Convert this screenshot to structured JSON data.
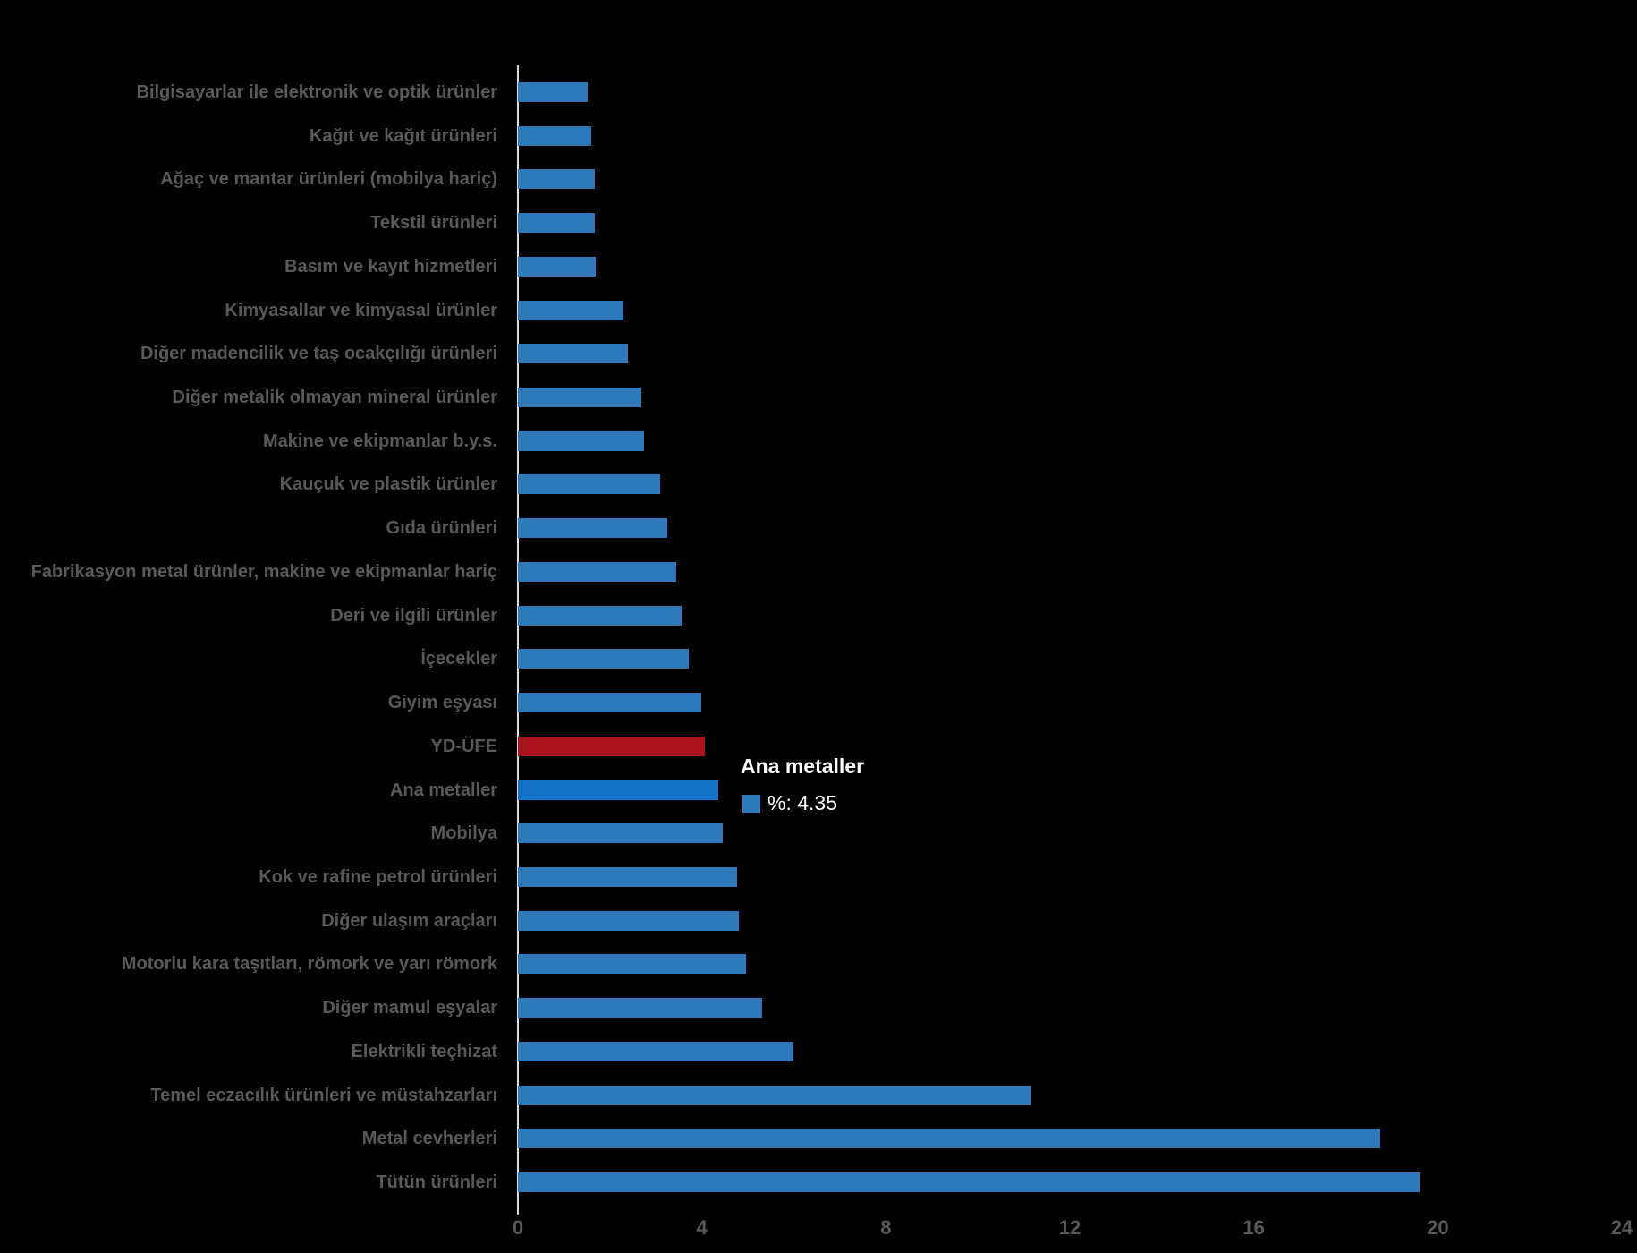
{
  "colors": {
    "bar_normal": "#2E79B9",
    "bar_highlight": "#1273C7",
    "bar_emphasis": "#AB141D",
    "category_label": "#595959",
    "tick_label": "#595959",
    "axis_line": "#D5DBE2",
    "background": "#000000",
    "tooltip_text": "#FFFFFF"
  },
  "tooltip": {
    "title": "Ana metaller",
    "value_label": "%: 4.35",
    "swatch_color": "#2E79B9"
  },
  "chart_data": {
    "type": "bar",
    "orientation": "horizontal",
    "title": "",
    "xlabel": "",
    "ylabel": "",
    "xlim": [
      0,
      24
    ],
    "x_ticks": [
      "0",
      "4",
      "8",
      "12",
      "16",
      "20",
      "24"
    ],
    "x_tick_values": [
      0,
      4,
      8,
      12,
      16,
      20,
      24
    ],
    "grid": false,
    "legend": "none",
    "series": [
      {
        "label": "Bilgisayarlar ile elektronik ve optik ürünler",
        "value": 1.52,
        "role": "normal"
      },
      {
        "label": "Kağıt ve kağıt ürünleri",
        "value": 1.59,
        "role": "normal"
      },
      {
        "label": "Ağaç ve mantar ürünleri (mobilya hariç)",
        "value": 1.68,
        "role": "normal"
      },
      {
        "label": "Tekstil ürünleri",
        "value": 1.68,
        "role": "normal"
      },
      {
        "label": "Basım ve kayıt hizmetleri",
        "value": 1.7,
        "role": "normal"
      },
      {
        "label": "Kimyasallar ve kimyasal ürünler",
        "value": 2.3,
        "role": "normal"
      },
      {
        "label": "Diğer madencilik ve taş ocakçılığı ürünleri",
        "value": 2.4,
        "role": "normal"
      },
      {
        "label": "Diğer metalik olmayan mineral ürünler",
        "value": 2.68,
        "role": "normal"
      },
      {
        "label": "Makine ve ekipmanlar b.y.s.",
        "value": 2.75,
        "role": "normal"
      },
      {
        "label": "Kauçuk ve plastik ürünler",
        "value": 3.1,
        "role": "normal"
      },
      {
        "label": "Gıda ürünleri",
        "value": 3.25,
        "role": "normal"
      },
      {
        "label": "Fabrikasyon metal ürünler, makine ve ekipmanlar hariç",
        "value": 3.45,
        "role": "normal"
      },
      {
        "label": "Deri ve ilgili ürünler",
        "value": 3.56,
        "role": "normal"
      },
      {
        "label": "İçecekler",
        "value": 3.71,
        "role": "normal"
      },
      {
        "label": "Giyim eşyası",
        "value": 3.98,
        "role": "normal"
      },
      {
        "label": "YD-ÜFE",
        "value": 4.07,
        "role": "emphasis"
      },
      {
        "label": "Ana metaller",
        "value": 4.35,
        "role": "highlight"
      },
      {
        "label": "Mobilya",
        "value": 4.46,
        "role": "normal"
      },
      {
        "label": "Kok ve rafine petrol ürünleri",
        "value": 4.77,
        "role": "normal"
      },
      {
        "label": "Diğer ulaşım araçları",
        "value": 4.8,
        "role": "normal"
      },
      {
        "label": "Motorlu kara taşıtları, römork ve yarı römork",
        "value": 4.96,
        "role": "normal"
      },
      {
        "label": "Diğer mamul eşyalar",
        "value": 5.3,
        "role": "normal"
      },
      {
        "label": "Elektrikli teçhizat",
        "value": 5.99,
        "role": "normal"
      },
      {
        "label": "Temel eczacılık ürünleri ve müstahzarları",
        "value": 11.15,
        "role": "normal"
      },
      {
        "label": "Metal cevherleri",
        "value": 18.75,
        "role": "normal"
      },
      {
        "label": "Tütün ürünleri",
        "value": 19.6,
        "role": "normal"
      }
    ]
  }
}
